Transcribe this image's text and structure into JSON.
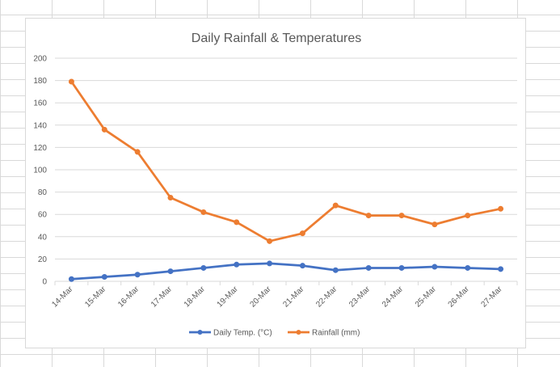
{
  "chart_data": {
    "type": "line",
    "title": "Daily Rainfall & Temperatures",
    "categories": [
      "14-Mar",
      "15-Mar",
      "16-Mar",
      "17-Mar",
      "18-Mar",
      "19-Mar",
      "20-Mar",
      "21-Mar",
      "22-Mar",
      "23-Mar",
      "24-Mar",
      "25-Mar",
      "26-Mar",
      "27-Mar"
    ],
    "ylim": [
      0,
      200
    ],
    "yticks": [
      0,
      20,
      40,
      60,
      80,
      100,
      120,
      140,
      160,
      180,
      200
    ],
    "grid": true,
    "legend_position": "bottom",
    "series": [
      {
        "name": "Daily Temp. (°C)",
        "color": "#4472c4",
        "values": [
          2,
          4,
          6,
          9,
          12,
          15,
          16,
          14,
          10,
          12,
          12,
          13,
          12,
          11
        ]
      },
      {
        "name": "Rainfall (mm)",
        "color": "#ed7d31",
        "values": [
          179,
          136,
          116,
          75,
          62,
          53,
          36,
          43,
          68,
          59,
          59,
          51,
          59,
          65
        ]
      }
    ]
  }
}
